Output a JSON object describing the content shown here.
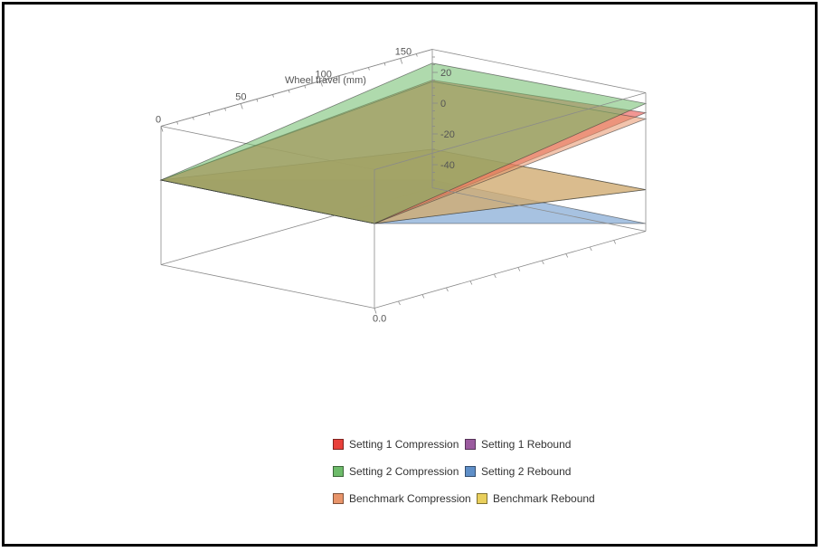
{
  "chart_data": {
    "type": "surface3d",
    "title": "",
    "axes": {
      "x": {
        "label": "Wheel travel (mm)",
        "ticks": [
          0,
          50,
          100,
          150
        ],
        "range": [
          0,
          170
        ]
      },
      "y": {
        "label": "",
        "ticks": [
          0.0
        ],
        "tick_labels": [
          "0.0"
        ],
        "range": [
          0,
          1
        ]
      },
      "z": {
        "label": "",
        "ticks": [
          20,
          0,
          -20,
          -40
        ],
        "range": [
          -55,
          35
        ]
      }
    },
    "grid": false,
    "legend_placement": "bottom",
    "series": [
      {
        "name": "Setting 1 Compression",
        "color": "#e8403a",
        "corners": {
          "x0_y0": 0,
          "x170_y0": 22,
          "x0_y1": 0,
          "x170_y1": 15
        }
      },
      {
        "name": "Setting 1 Rebound",
        "color": "#9b5b9f",
        "corners": {
          "x0_y0": 0,
          "x170_y0": -28,
          "x0_y1": 0,
          "x170_y1": -30
        }
      },
      {
        "name": "Setting 2 Compression",
        "color": "#6dbb6a",
        "corners": {
          "x0_y0": 0,
          "x170_y0": 28,
          "x0_y1": 0,
          "x170_y1": 26
        }
      },
      {
        "name": "Setting 2 Rebound",
        "color": "#5f8fc8",
        "corners": {
          "x0_y0": 0,
          "x170_y0": -50,
          "x0_y1": 0,
          "x170_y1": -50
        }
      },
      {
        "name": "Benchmark Compression",
        "color": "#e8946a",
        "corners": {
          "x0_y0": 0,
          "x170_y0": 18,
          "x0_y1": 0,
          "x170_y1": 14
        }
      },
      {
        "name": "Benchmark Rebound",
        "color": "#e9cf5c",
        "corners": {
          "x0_y0": 0,
          "x170_y0": -28,
          "x0_y1": 0,
          "x170_y1": -30
        }
      }
    ]
  },
  "legend": {
    "items": [
      {
        "label": "Setting 1 Compression",
        "color": "#e8403a"
      },
      {
        "label": "Setting 1 Rebound",
        "color": "#9b5b9f"
      },
      {
        "label": "Setting 2 Compression",
        "color": "#6dbb6a"
      },
      {
        "label": "Setting 2 Rebound",
        "color": "#5f8fc8"
      },
      {
        "label": "Benchmark Compression",
        "color": "#e8946a"
      },
      {
        "label": "Benchmark Rebound",
        "color": "#e9cf5c"
      }
    ]
  }
}
